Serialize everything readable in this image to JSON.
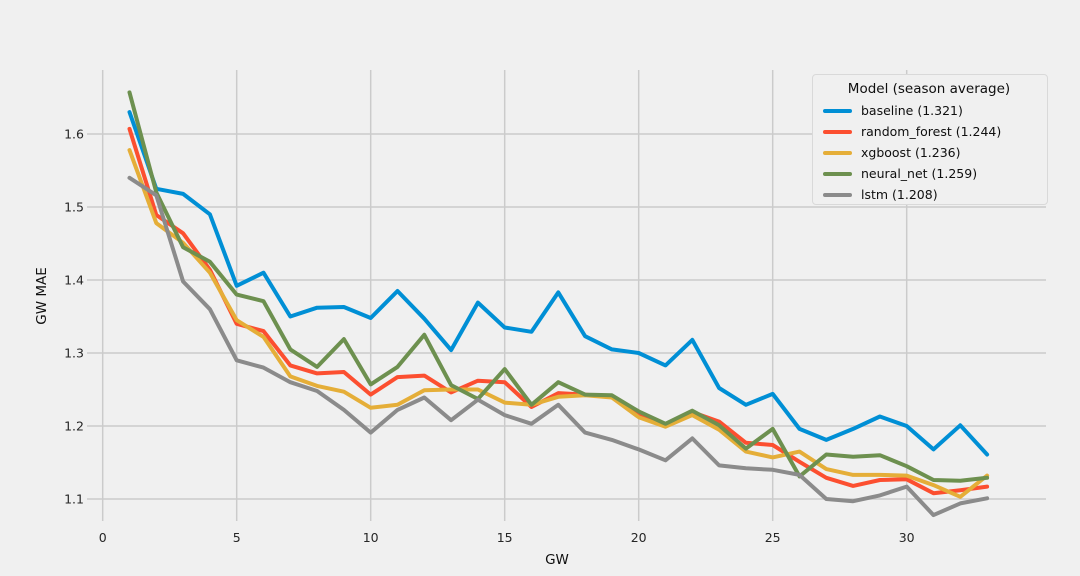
{
  "chart_data": {
    "type": "line",
    "title": "",
    "xlabel": "GW",
    "ylabel": "GW MAE",
    "grid": true,
    "background_color": "#f0f0f0",
    "grid_color": "#cbcbcb",
    "text_color": "#262626",
    "x_ticks": [
      0,
      5,
      10,
      15,
      20,
      25,
      30
    ],
    "y_ticks": [
      1.1,
      1.2,
      1.3,
      1.4,
      1.5,
      1.6
    ],
    "xlim": [
      -0.6,
      35.2
    ],
    "ylim": [
      1.07,
      1.688
    ],
    "legend": {
      "title": "Model (season average)",
      "position": "upper right"
    },
    "x": [
      1,
      2,
      3,
      4,
      5,
      6,
      7,
      8,
      9,
      10,
      11,
      12,
      13,
      14,
      15,
      16,
      17,
      18,
      19,
      20,
      21,
      22,
      23,
      24,
      25,
      26,
      27,
      28,
      29,
      30,
      31,
      32,
      33
    ],
    "series": [
      {
        "name": "baseline",
        "label": "baseline (1.321)",
        "season_average": 1.321,
        "color": "#008fd5",
        "values": [
          1.63,
          1.525,
          1.518,
          1.49,
          1.392,
          1.41,
          1.35,
          1.362,
          1.363,
          1.348,
          1.385,
          1.347,
          1.304,
          1.369,
          1.335,
          1.329,
          1.383,
          1.323,
          1.305,
          1.3,
          1.283,
          1.318,
          1.252,
          1.229,
          1.244,
          1.196,
          1.181,
          1.196,
          1.213,
          1.2,
          1.168,
          1.201,
          1.161
        ]
      },
      {
        "name": "random_forest",
        "label": "random_forest (1.244)",
        "season_average": 1.244,
        "color": "#fc4f30",
        "values": [
          1.607,
          1.489,
          1.464,
          1.414,
          1.34,
          1.33,
          1.283,
          1.272,
          1.274,
          1.243,
          1.267,
          1.269,
          1.246,
          1.262,
          1.26,
          1.226,
          1.245,
          1.243,
          1.24,
          1.216,
          1.202,
          1.219,
          1.206,
          1.177,
          1.174,
          1.151,
          1.129,
          1.118,
          1.126,
          1.127,
          1.108,
          1.112,
          1.117
        ]
      },
      {
        "name": "xgboost",
        "label": "xgboost (1.236)",
        "season_average": 1.236,
        "color": "#e5ae38",
        "values": [
          1.578,
          1.478,
          1.451,
          1.41,
          1.345,
          1.322,
          1.268,
          1.255,
          1.247,
          1.225,
          1.229,
          1.249,
          1.25,
          1.25,
          1.232,
          1.229,
          1.24,
          1.242,
          1.239,
          1.212,
          1.199,
          1.215,
          1.195,
          1.165,
          1.157,
          1.165,
          1.141,
          1.133,
          1.133,
          1.132,
          1.119,
          1.103,
          1.132
        ]
      },
      {
        "name": "neural_net",
        "label": "neural_net (1.259)",
        "season_average": 1.259,
        "color": "#6d904f",
        "values": [
          1.657,
          1.52,
          1.445,
          1.425,
          1.38,
          1.371,
          1.305,
          1.281,
          1.319,
          1.257,
          1.281,
          1.325,
          1.256,
          1.237,
          1.278,
          1.229,
          1.26,
          1.243,
          1.242,
          1.22,
          1.203,
          1.221,
          1.201,
          1.169,
          1.196,
          1.131,
          1.161,
          1.158,
          1.16,
          1.145,
          1.126,
          1.125,
          1.129
        ]
      },
      {
        "name": "lstm",
        "label": "lstm (1.208)",
        "season_average": 1.208,
        "color": "#8b8b8b",
        "values": [
          1.54,
          1.516,
          1.398,
          1.36,
          1.29,
          1.28,
          1.26,
          1.248,
          1.222,
          1.191,
          1.222,
          1.239,
          1.208,
          1.236,
          1.215,
          1.203,
          1.229,
          1.191,
          1.181,
          1.168,
          1.153,
          1.183,
          1.146,
          1.142,
          1.14,
          1.133,
          1.1,
          1.097,
          1.105,
          1.117,
          1.078,
          1.094,
          1.101
        ]
      }
    ]
  }
}
